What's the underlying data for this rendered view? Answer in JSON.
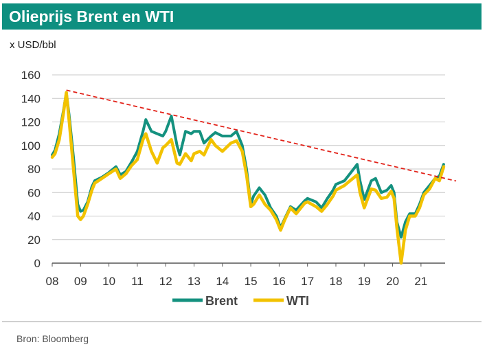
{
  "header": {
    "title": "Olieprijs Brent en WTI"
  },
  "footer": {
    "source": "Bron: Bloomberg"
  },
  "colors": {
    "title_bg": "#0e8f80",
    "brent": "#14917f",
    "wti": "#f2c200",
    "trend": "#e2231a",
    "grid": "#c8c8c8"
  },
  "chart_data": {
    "type": "line",
    "title": "Olieprijs Brent en WTI",
    "ylabel": "x USD/bbl",
    "xlabel": "",
    "ylim": [
      0,
      160
    ],
    "yticks": [
      0,
      20,
      40,
      60,
      80,
      100,
      120,
      140,
      160
    ],
    "xlim": [
      2008,
      2021.85
    ],
    "xticks": [
      {
        "value": 2008,
        "label": "08"
      },
      {
        "value": 2009,
        "label": "09"
      },
      {
        "value": 2010,
        "label": "10"
      },
      {
        "value": 2011,
        "label": "11"
      },
      {
        "value": 2012,
        "label": "12"
      },
      {
        "value": 2013,
        "label": "13"
      },
      {
        "value": 2014,
        "label": "14"
      },
      {
        "value": 2015,
        "label": "15"
      },
      {
        "value": 2016,
        "label": "16"
      },
      {
        "value": 2017,
        "label": "17"
      },
      {
        "value": 2018,
        "label": "18"
      },
      {
        "value": 2019,
        "label": "19"
      },
      {
        "value": 2020,
        "label": "20"
      },
      {
        "value": 2021,
        "label": "21"
      }
    ],
    "grid": true,
    "legend_position": "bottom-center",
    "series": [
      {
        "name": "Brent",
        "points": [
          [
            2008.0,
            92
          ],
          [
            2008.1,
            96
          ],
          [
            2008.25,
            110
          ],
          [
            2008.4,
            130
          ],
          [
            2008.5,
            145
          ],
          [
            2008.6,
            125
          ],
          [
            2008.75,
            90
          ],
          [
            2008.9,
            50
          ],
          [
            2009.0,
            44
          ],
          [
            2009.1,
            45
          ],
          [
            2009.25,
            52
          ],
          [
            2009.4,
            65
          ],
          [
            2009.5,
            70
          ],
          [
            2009.75,
            73
          ],
          [
            2010.0,
            77
          ],
          [
            2010.25,
            82
          ],
          [
            2010.4,
            75
          ],
          [
            2010.6,
            78
          ],
          [
            2010.8,
            86
          ],
          [
            2011.0,
            95
          ],
          [
            2011.2,
            112
          ],
          [
            2011.3,
            122
          ],
          [
            2011.5,
            112
          ],
          [
            2011.7,
            110
          ],
          [
            2011.9,
            108
          ],
          [
            2012.0,
            112
          ],
          [
            2012.2,
            125
          ],
          [
            2012.4,
            100
          ],
          [
            2012.5,
            92
          ],
          [
            2012.7,
            112
          ],
          [
            2012.9,
            110
          ],
          [
            2013.0,
            112
          ],
          [
            2013.2,
            112
          ],
          [
            2013.35,
            102
          ],
          [
            2013.6,
            108
          ],
          [
            2013.75,
            111
          ],
          [
            2014.0,
            108
          ],
          [
            2014.3,
            108
          ],
          [
            2014.5,
            112
          ],
          [
            2014.7,
            100
          ],
          [
            2014.85,
            80
          ],
          [
            2015.0,
            50
          ],
          [
            2015.1,
            57
          ],
          [
            2015.3,
            64
          ],
          [
            2015.5,
            58
          ],
          [
            2015.7,
            47
          ],
          [
            2015.9,
            40
          ],
          [
            2016.05,
            30
          ],
          [
            2016.2,
            38
          ],
          [
            2016.4,
            48
          ],
          [
            2016.6,
            45
          ],
          [
            2016.9,
            53
          ],
          [
            2017.0,
            55
          ],
          [
            2017.3,
            52
          ],
          [
            2017.5,
            47
          ],
          [
            2017.7,
            55
          ],
          [
            2017.9,
            62
          ],
          [
            2018.0,
            67
          ],
          [
            2018.3,
            70
          ],
          [
            2018.5,
            76
          ],
          [
            2018.75,
            84
          ],
          [
            2018.85,
            70
          ],
          [
            2019.0,
            54
          ],
          [
            2019.25,
            70
          ],
          [
            2019.4,
            72
          ],
          [
            2019.6,
            60
          ],
          [
            2019.8,
            62
          ],
          [
            2019.95,
            66
          ],
          [
            2020.05,
            60
          ],
          [
            2020.15,
            35
          ],
          [
            2020.3,
            22
          ],
          [
            2020.45,
            35
          ],
          [
            2020.6,
            42
          ],
          [
            2020.8,
            42
          ],
          [
            2020.95,
            50
          ],
          [
            2021.1,
            60
          ],
          [
            2021.3,
            66
          ],
          [
            2021.5,
            72
          ],
          [
            2021.65,
            74
          ],
          [
            2021.8,
            84
          ]
        ]
      },
      {
        "name": "WTI",
        "points": [
          [
            2008.0,
            90
          ],
          [
            2008.1,
            93
          ],
          [
            2008.25,
            105
          ],
          [
            2008.4,
            128
          ],
          [
            2008.5,
            145
          ],
          [
            2008.6,
            120
          ],
          [
            2008.75,
            80
          ],
          [
            2008.9,
            40
          ],
          [
            2009.0,
            37
          ],
          [
            2009.1,
            40
          ],
          [
            2009.25,
            50
          ],
          [
            2009.4,
            62
          ],
          [
            2009.5,
            68
          ],
          [
            2009.75,
            72
          ],
          [
            2010.0,
            76
          ],
          [
            2010.25,
            80
          ],
          [
            2010.4,
            72
          ],
          [
            2010.6,
            76
          ],
          [
            2010.8,
            83
          ],
          [
            2011.0,
            88
          ],
          [
            2011.2,
            105
          ],
          [
            2011.3,
            110
          ],
          [
            2011.5,
            95
          ],
          [
            2011.7,
            85
          ],
          [
            2011.9,
            98
          ],
          [
            2012.0,
            100
          ],
          [
            2012.2,
            105
          ],
          [
            2012.4,
            85
          ],
          [
            2012.5,
            84
          ],
          [
            2012.7,
            93
          ],
          [
            2012.9,
            87
          ],
          [
            2013.0,
            93
          ],
          [
            2013.2,
            95
          ],
          [
            2013.35,
            92
          ],
          [
            2013.6,
            105
          ],
          [
            2013.75,
            100
          ],
          [
            2014.0,
            95
          ],
          [
            2014.3,
            102
          ],
          [
            2014.5,
            104
          ],
          [
            2014.7,
            95
          ],
          [
            2014.85,
            75
          ],
          [
            2015.0,
            48
          ],
          [
            2015.1,
            50
          ],
          [
            2015.3,
            58
          ],
          [
            2015.5,
            50
          ],
          [
            2015.7,
            45
          ],
          [
            2015.9,
            37
          ],
          [
            2016.05,
            28
          ],
          [
            2016.2,
            37
          ],
          [
            2016.4,
            47
          ],
          [
            2016.6,
            42
          ],
          [
            2016.9,
            51
          ],
          [
            2017.0,
            52
          ],
          [
            2017.3,
            48
          ],
          [
            2017.5,
            44
          ],
          [
            2017.7,
            50
          ],
          [
            2017.9,
            57
          ],
          [
            2018.0,
            62
          ],
          [
            2018.3,
            66
          ],
          [
            2018.5,
            70
          ],
          [
            2018.75,
            75
          ],
          [
            2018.85,
            60
          ],
          [
            2019.0,
            47
          ],
          [
            2019.25,
            63
          ],
          [
            2019.4,
            62
          ],
          [
            2019.6,
            55
          ],
          [
            2019.8,
            56
          ],
          [
            2019.95,
            61
          ],
          [
            2020.05,
            55
          ],
          [
            2020.15,
            30
          ],
          [
            2020.3,
            0
          ],
          [
            2020.45,
            28
          ],
          [
            2020.6,
            40
          ],
          [
            2020.8,
            40
          ],
          [
            2020.95,
            47
          ],
          [
            2021.1,
            58
          ],
          [
            2021.3,
            63
          ],
          [
            2021.5,
            72
          ],
          [
            2021.65,
            70
          ],
          [
            2021.8,
            82
          ]
        ]
      }
    ],
    "trendline": {
      "style": "dashed",
      "from": [
        2008.5,
        147
      ],
      "to": [
        2021.85,
        72
      ]
    }
  }
}
